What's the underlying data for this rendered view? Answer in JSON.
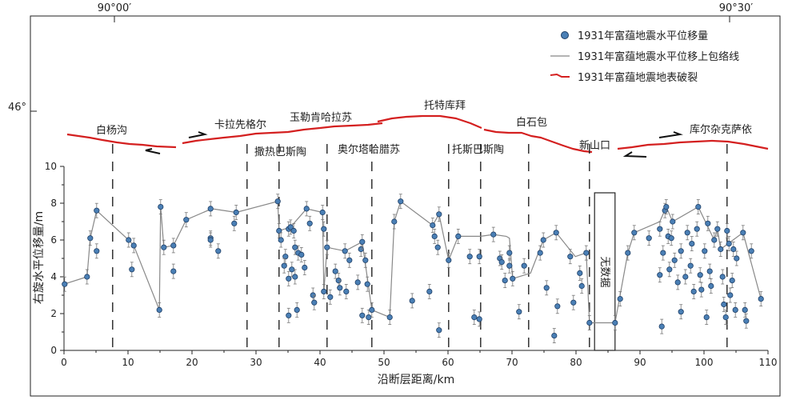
{
  "top_ticks": [
    "90°00′",
    "90°30′"
  ],
  "lat_label": "46°",
  "legend": {
    "points": "1931年富蕴地震水平位移量",
    "line": "1931年富蕴地震水平位移上包络线",
    "rupture": "1931年富蕴地震地表破裂"
  },
  "segment_labels_upper": [
    "白杨沟",
    "卡拉先格尔",
    "玉勒肯哈拉苏",
    "托特库拜",
    "白石包",
    "新山口",
    "库尔杂克萨依"
  ],
  "segment_labels_lower": [
    "撒热巴斯陶",
    "奥尔塔哈腊苏",
    "托斯巴斯陶"
  ],
  "no_data_label": "无数据",
  "colors": {
    "rupture": "#d42020",
    "points": "#4a7fb5",
    "envelope": "#888888",
    "axis": "#222222"
  },
  "chart_data": {
    "type": "scatter",
    "xlabel": "沿断层距离/km",
    "ylabel": "右旋水平位移量/m",
    "xlim": [
      0,
      110
    ],
    "ylim": [
      0,
      10
    ],
    "xticks": [
      "0",
      "10",
      "20",
      "30",
      "40",
      "50",
      "60",
      "70",
      "80",
      "90",
      "100",
      "110"
    ],
    "yticks": [
      "0",
      "2",
      "4",
      "6",
      "8",
      "10"
    ],
    "segment_boundaries_km": [
      7.6,
      28.6,
      33.6,
      41.1,
      48.1,
      60.1,
      65.1,
      72.6,
      82.1,
      103.6
    ],
    "no_data_range_km": [
      82.9,
      86.1
    ],
    "envelope": [
      [
        0,
        3.6
      ],
      [
        3.6,
        4.0
      ],
      [
        4.1,
        6.1
      ],
      [
        5.1,
        7.6
      ],
      [
        10.1,
        6.0
      ],
      [
        10.9,
        5.7
      ],
      [
        14.9,
        2.2
      ],
      [
        15.1,
        7.8
      ],
      [
        15.6,
        5.6
      ],
      [
        17.1,
        5.7
      ],
      [
        19.1,
        7.1
      ],
      [
        23.1,
        7.7
      ],
      [
        26.9,
        7.5
      ],
      [
        33.4,
        8.1
      ],
      [
        33.6,
        6.5
      ],
      [
        35.4,
        6.7
      ],
      [
        37.9,
        7.7
      ],
      [
        40.4,
        7.5
      ],
      [
        40.6,
        3.2
      ],
      [
        41.1,
        5.6
      ],
      [
        43.9,
        5.4
      ],
      [
        46.6,
        5.9
      ],
      [
        48.1,
        2.2
      ],
      [
        50.9,
        1.8
      ],
      [
        51.6,
        7.0
      ],
      [
        52.6,
        8.1
      ],
      [
        57.6,
        6.8
      ],
      [
        58.6,
        7.4
      ],
      [
        60.1,
        4.9
      ],
      [
        61.6,
        6.2
      ],
      [
        65.1,
        6.2
      ],
      [
        67.1,
        6.3
      ],
      [
        69.1,
        6.2
      ],
      [
        69.6,
        6.1
      ],
      [
        70.1,
        3.9
      ],
      [
        72.9,
        4.2
      ],
      [
        74.9,
        6.0
      ],
      [
        76.9,
        6.4
      ],
      [
        79.9,
        5.1
      ],
      [
        81.6,
        5.3
      ],
      [
        82.1,
        1.5
      ],
      [
        86.1,
        1.5
      ],
      [
        88.1,
        5.3
      ],
      [
        89.1,
        6.4
      ],
      [
        93.1,
        7.0
      ],
      [
        94.1,
        7.8
      ],
      [
        95.1,
        7.0
      ],
      [
        99.1,
        7.8
      ],
      [
        101.6,
        6.0
      ],
      [
        102.1,
        6.6
      ],
      [
        102.6,
        5.5
      ],
      [
        106.1,
        6.4
      ],
      [
        108.9,
        2.8
      ]
    ],
    "points": [
      [
        0.1,
        3.6
      ],
      [
        3.6,
        4.0
      ],
      [
        4.1,
        6.1
      ],
      [
        5.1,
        7.6
      ],
      [
        5.1,
        5.4
      ],
      [
        10.1,
        6.0
      ],
      [
        10.9,
        5.7
      ],
      [
        10.6,
        4.4
      ],
      [
        14.9,
        2.2
      ],
      [
        15.1,
        7.8
      ],
      [
        15.6,
        5.6
      ],
      [
        17.1,
        5.7
      ],
      [
        17.1,
        4.3
      ],
      [
        19.1,
        7.1
      ],
      [
        22.9,
        7.7
      ],
      [
        22.9,
        6.1
      ],
      [
        22.9,
        6.0
      ],
      [
        24.1,
        5.4
      ],
      [
        26.6,
        6.9
      ],
      [
        26.9,
        7.5
      ],
      [
        33.4,
        8.1
      ],
      [
        33.6,
        6.5
      ],
      [
        34.6,
        5.1
      ],
      [
        35.1,
        6.6
      ],
      [
        35.4,
        6.7
      ],
      [
        35.9,
        6.5
      ],
      [
        33.9,
        6.0
      ],
      [
        34.4,
        4.6
      ],
      [
        35.6,
        4.4
      ],
      [
        36.1,
        5.6
      ],
      [
        36.6,
        5.3
      ],
      [
        37.1,
        5.2
      ],
      [
        37.6,
        4.5
      ],
      [
        36.1,
        4.0
      ],
      [
        35.1,
        3.9
      ],
      [
        36.4,
        2.2
      ],
      [
        35.1,
        1.9
      ],
      [
        37.9,
        7.7
      ],
      [
        38.4,
        6.9
      ],
      [
        38.9,
        3.0
      ],
      [
        39.1,
        2.6
      ],
      [
        40.4,
        7.5
      ],
      [
        40.6,
        6.6
      ],
      [
        40.6,
        3.2
      ],
      [
        41.1,
        5.6
      ],
      [
        41.6,
        2.9
      ],
      [
        42.4,
        4.3
      ],
      [
        42.9,
        3.8
      ],
      [
        43.1,
        3.4
      ],
      [
        43.9,
        5.4
      ],
      [
        44.6,
        4.9
      ],
      [
        44.1,
        3.2
      ],
      [
        46.4,
        5.5
      ],
      [
        46.6,
        5.9
      ],
      [
        45.9,
        3.7
      ],
      [
        47.1,
        4.9
      ],
      [
        47.4,
        3.6
      ],
      [
        46.6,
        1.9
      ],
      [
        47.6,
        1.8
      ],
      [
        48.1,
        2.2
      ],
      [
        50.9,
        1.8
      ],
      [
        51.6,
        7.0
      ],
      [
        52.6,
        8.1
      ],
      [
        54.4,
        2.7
      ],
      [
        57.1,
        3.2
      ],
      [
        57.6,
        6.8
      ],
      [
        57.9,
        6.2
      ],
      [
        58.4,
        5.6
      ],
      [
        58.6,
        7.4
      ],
      [
        58.6,
        1.1
      ],
      [
        60.1,
        4.9
      ],
      [
        61.6,
        6.2
      ],
      [
        63.4,
        5.1
      ],
      [
        64.9,
        5.1
      ],
      [
        64.1,
        1.8
      ],
      [
        64.9,
        1.7
      ],
      [
        67.1,
        6.3
      ],
      [
        68.1,
        5.0
      ],
      [
        68.4,
        4.8
      ],
      [
        68.9,
        3.8
      ],
      [
        69.6,
        5.3
      ],
      [
        69.6,
        4.6
      ],
      [
        70.1,
        3.9
      ],
      [
        71.1,
        2.1
      ],
      [
        71.9,
        4.6
      ],
      [
        74.9,
        6.0
      ],
      [
        74.4,
        5.3
      ],
      [
        75.4,
        3.4
      ],
      [
        76.9,
        6.4
      ],
      [
        76.6,
        0.8
      ],
      [
        77.1,
        2.4
      ],
      [
        79.1,
        5.1
      ],
      [
        79.6,
        2.6
      ],
      [
        80.6,
        4.2
      ],
      [
        80.9,
        3.5
      ],
      [
        81.6,
        5.3
      ],
      [
        82.1,
        1.5
      ],
      [
        86.1,
        1.5
      ],
      [
        86.9,
        2.8
      ],
      [
        88.1,
        5.3
      ],
      [
        89.1,
        6.4
      ],
      [
        91.4,
        6.1
      ],
      [
        93.1,
        6.6
      ],
      [
        93.9,
        7.6
      ],
      [
        94.1,
        7.8
      ],
      [
        93.1,
        4.1
      ],
      [
        93.6,
        5.3
      ],
      [
        94.4,
        6.2
      ],
      [
        94.9,
        6.1
      ],
      [
        95.1,
        7.0
      ],
      [
        94.6,
        4.4
      ],
      [
        95.4,
        4.9
      ],
      [
        95.9,
        3.7
      ],
      [
        96.4,
        5.4
      ],
      [
        97.1,
        4.0
      ],
      [
        97.4,
        6.4
      ],
      [
        97.9,
        4.6
      ],
      [
        98.1,
        5.8
      ],
      [
        98.4,
        3.2
      ],
      [
        98.9,
        6.6
      ],
      [
        99.1,
        7.8
      ],
      [
        99.4,
        4.1
      ],
      [
        99.6,
        3.3
      ],
      [
        100.1,
        5.4
      ],
      [
        100.6,
        6.9
      ],
      [
        100.9,
        4.3
      ],
      [
        101.1,
        3.5
      ],
      [
        101.6,
        6.0
      ],
      [
        102.1,
        6.6
      ],
      [
        102.6,
        5.5
      ],
      [
        102.9,
        4.0
      ],
      [
        103.1,
        2.5
      ],
      [
        103.6,
        6.5
      ],
      [
        103.9,
        5.8
      ],
      [
        104.1,
        3.0
      ],
      [
        104.4,
        3.8
      ],
      [
        104.6,
        5.5
      ],
      [
        104.9,
        2.2
      ],
      [
        103.4,
        1.8
      ],
      [
        105.1,
        5.0
      ],
      [
        106.1,
        6.4
      ],
      [
        106.4,
        2.2
      ],
      [
        106.6,
        1.6
      ],
      [
        107.4,
        5.4
      ],
      [
        108.9,
        2.8
      ],
      [
        100.4,
        1.8
      ],
      [
        93.4,
        1.3
      ],
      [
        96.4,
        2.1
      ]
    ]
  }
}
